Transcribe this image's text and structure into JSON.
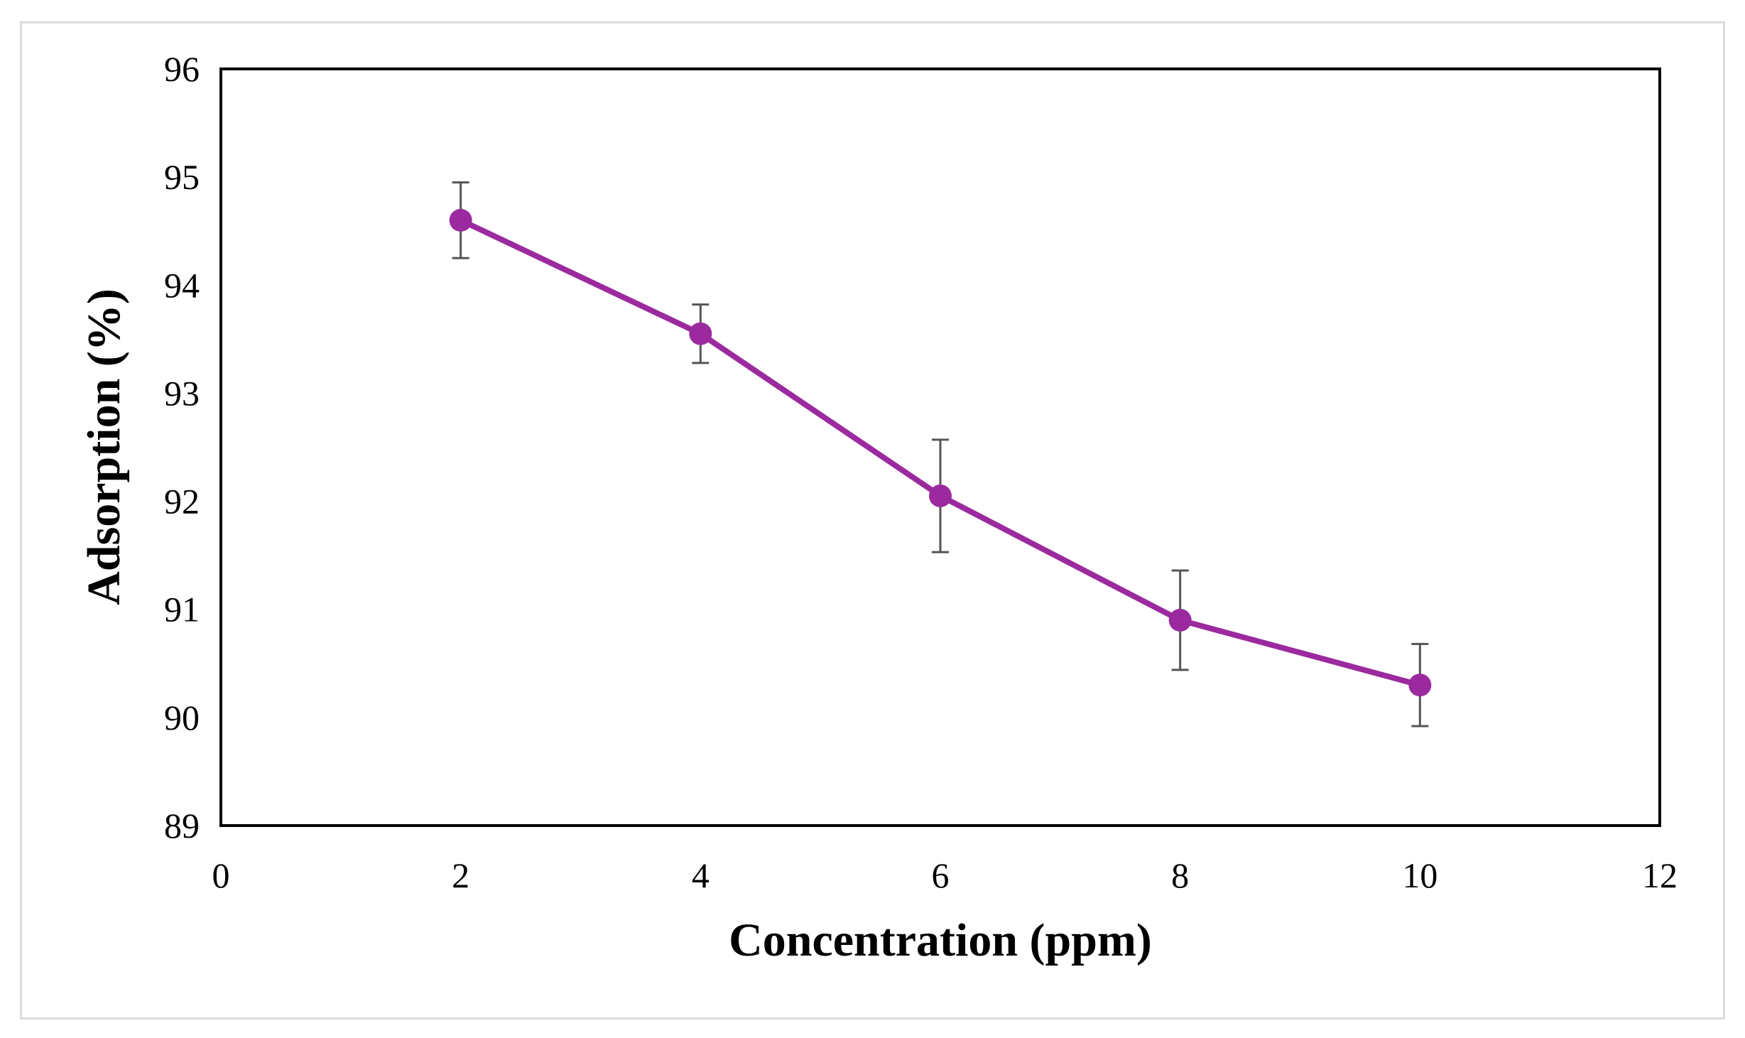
{
  "chart_data": {
    "type": "line",
    "title": "",
    "xlabel": "Concentration (ppm)",
    "ylabel": "Adsorption (%)",
    "xlim": [
      0,
      12
    ],
    "ylim": [
      89,
      96
    ],
    "xticks": [
      0,
      2,
      4,
      6,
      8,
      10,
      12
    ],
    "yticks": [
      89,
      90,
      91,
      92,
      93,
      94,
      95,
      96
    ],
    "grid": false,
    "legend": "none",
    "series": [
      {
        "name": "Adsorption",
        "color": "#9b2a9e",
        "x": [
          2,
          4,
          6,
          8,
          10
        ],
        "y": [
          94.6,
          93.55,
          92.05,
          90.9,
          90.3
        ],
        "error": [
          0.35,
          0.27,
          0.52,
          0.46,
          0.38
        ]
      }
    ]
  },
  "colors": {
    "series": "#9b2a9e",
    "error_bar": "#555555",
    "axis": "#000000",
    "frame": "#dcdcdc"
  }
}
